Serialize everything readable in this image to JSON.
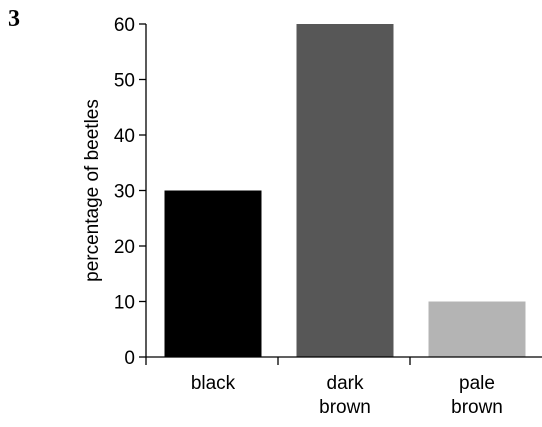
{
  "question_number": "3",
  "chart_data": {
    "type": "bar",
    "categories": [
      "black",
      "dark brown",
      "pale brown"
    ],
    "category_lines": [
      [
        "black"
      ],
      [
        "dark",
        "brown"
      ],
      [
        "pale",
        "brown"
      ]
    ],
    "values": [
      30,
      60,
      10
    ],
    "colors": [
      "#000000",
      "#575757",
      "#b4b4b4"
    ],
    "title": "",
    "xlabel": "",
    "ylabel": "percentage of beetles",
    "ylim": [
      0,
      60
    ],
    "yticks": [
      0,
      10,
      20,
      30,
      40,
      50,
      60
    ],
    "grid": false,
    "legend": "none"
  }
}
